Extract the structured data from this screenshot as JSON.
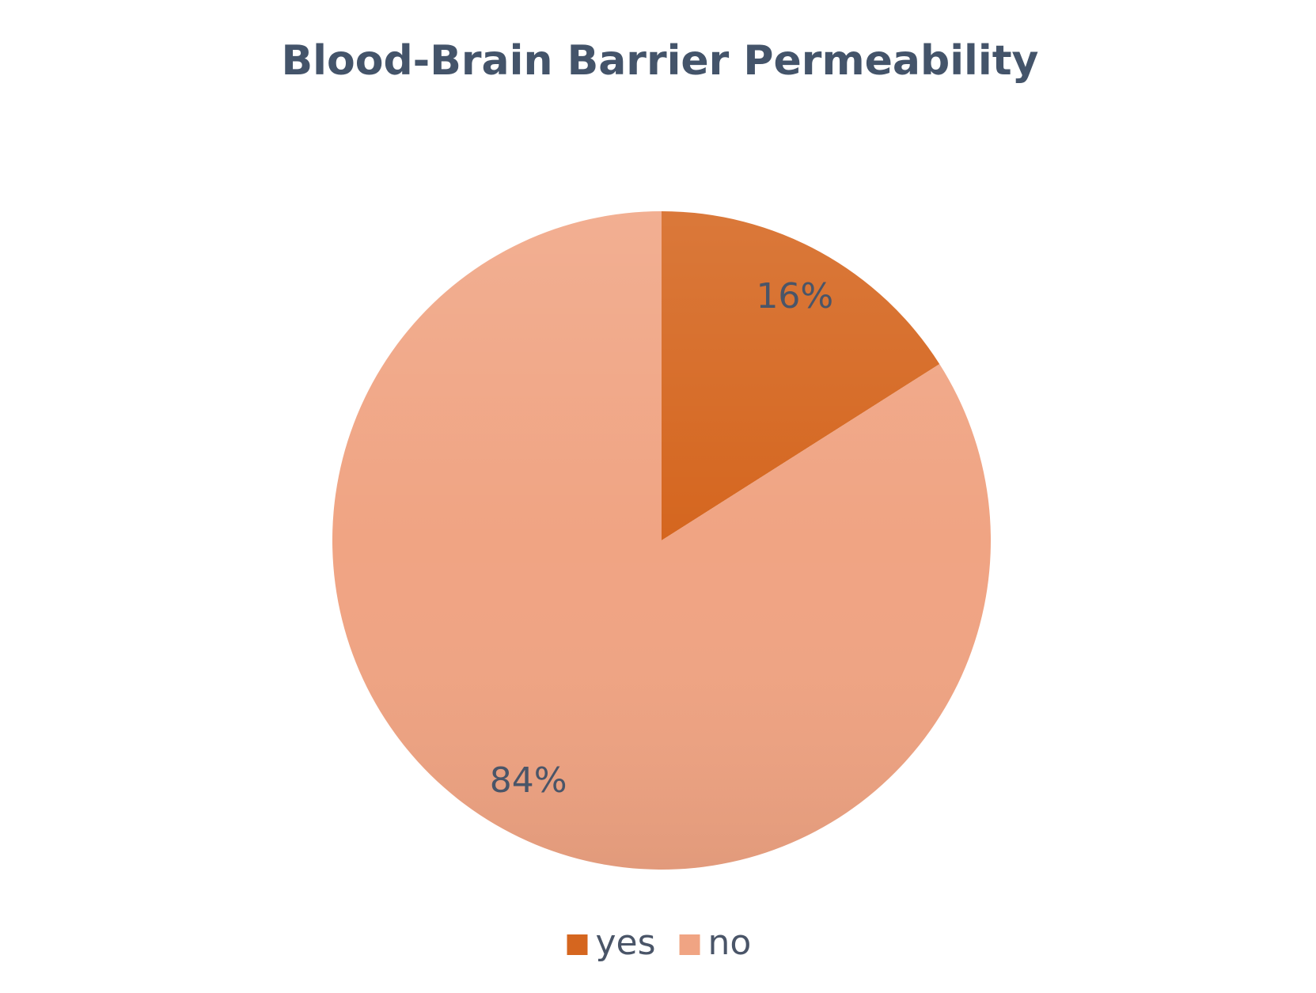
{
  "chart_data": {
    "type": "pie",
    "title": "Blood-Brain Barrier Permeability",
    "categories": [
      "yes",
      "no"
    ],
    "values": [
      16,
      84
    ],
    "value_labels": [
      "16%",
      "84%"
    ],
    "colors": [
      "#d5661f",
      "#f0a483"
    ],
    "legend": "bottom"
  }
}
